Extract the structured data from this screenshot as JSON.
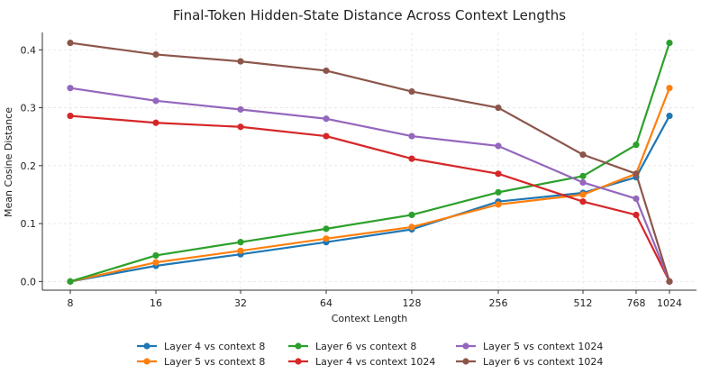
{
  "chart_data": {
    "type": "line",
    "title": "Final-Token Hidden-State Distance Across Context Lengths",
    "xlabel": "Context Length",
    "ylabel": "Mean Cosine Distance",
    "x": [
      "8",
      "16",
      "32",
      "64",
      "128",
      "256",
      "512",
      "768",
      "1024"
    ],
    "ylim": [
      -0.015,
      0.43
    ],
    "yticks": [
      "0.0",
      "0.1",
      "0.2",
      "0.3",
      "0.4"
    ],
    "ytick_values": [
      0.0,
      0.1,
      0.2,
      0.3,
      0.4
    ],
    "grid": true,
    "legend_placement": "bottom",
    "series": [
      {
        "name": "Layer 4 vs context 8",
        "color": "#1f77b4",
        "values": [
          0.0,
          0.027,
          0.047,
          0.068,
          0.09,
          0.138,
          0.153,
          0.18,
          0.286
        ]
      },
      {
        "name": "Layer 5 vs context 8",
        "color": "#ff7f0e",
        "values": [
          0.0,
          0.033,
          0.053,
          0.074,
          0.094,
          0.133,
          0.15,
          0.186,
          0.334
        ]
      },
      {
        "name": "Layer 6 vs context 8",
        "color": "#2ca02c",
        "values": [
          0.0,
          0.045,
          0.068,
          0.091,
          0.115,
          0.154,
          0.182,
          0.236,
          0.412
        ]
      },
      {
        "name": "Layer 4 vs context 1024",
        "color": "#d62728",
        "values": [
          0.286,
          0.274,
          0.267,
          0.251,
          0.212,
          0.186,
          0.138,
          0.115,
          0.0
        ]
      },
      {
        "name": "Layer 5 vs context 1024",
        "color": "#9467bd",
        "values": [
          0.334,
          0.312,
          0.297,
          0.281,
          0.251,
          0.234,
          0.171,
          0.143,
          0.0
        ]
      },
      {
        "name": "Layer 6 vs context 1024",
        "color": "#8c564b",
        "values": [
          0.412,
          0.392,
          0.38,
          0.364,
          0.328,
          0.3,
          0.219,
          0.186,
          0.0
        ]
      }
    ]
  }
}
